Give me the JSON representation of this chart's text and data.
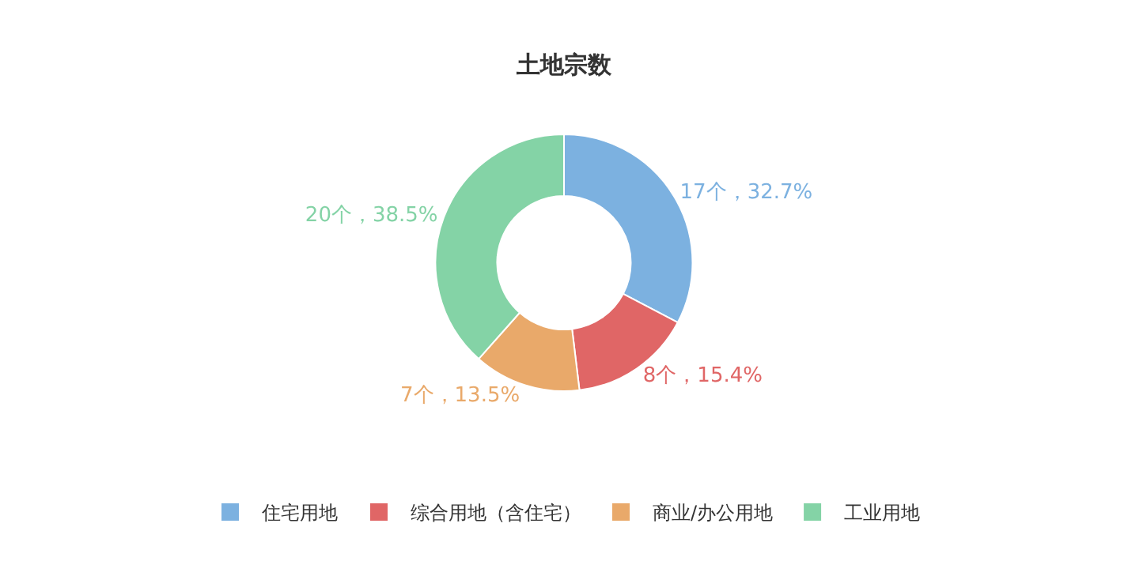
{
  "chart_data": {
    "type": "donut",
    "title": "土地宗数",
    "categories": [
      "住宅用地",
      "综合用地（含住宅）",
      "商业/办公用地",
      "工业用地"
    ],
    "values": [
      17,
      8,
      7,
      20
    ],
    "colors": [
      "#7cb1e0",
      "#e06666",
      "#e9a96a",
      "#84d3a6"
    ],
    "value_labels": [
      "17个，32.7%",
      "8个，15.4%",
      "7个，13.5%",
      "20个，38.5%"
    ],
    "legend": "bottom"
  }
}
